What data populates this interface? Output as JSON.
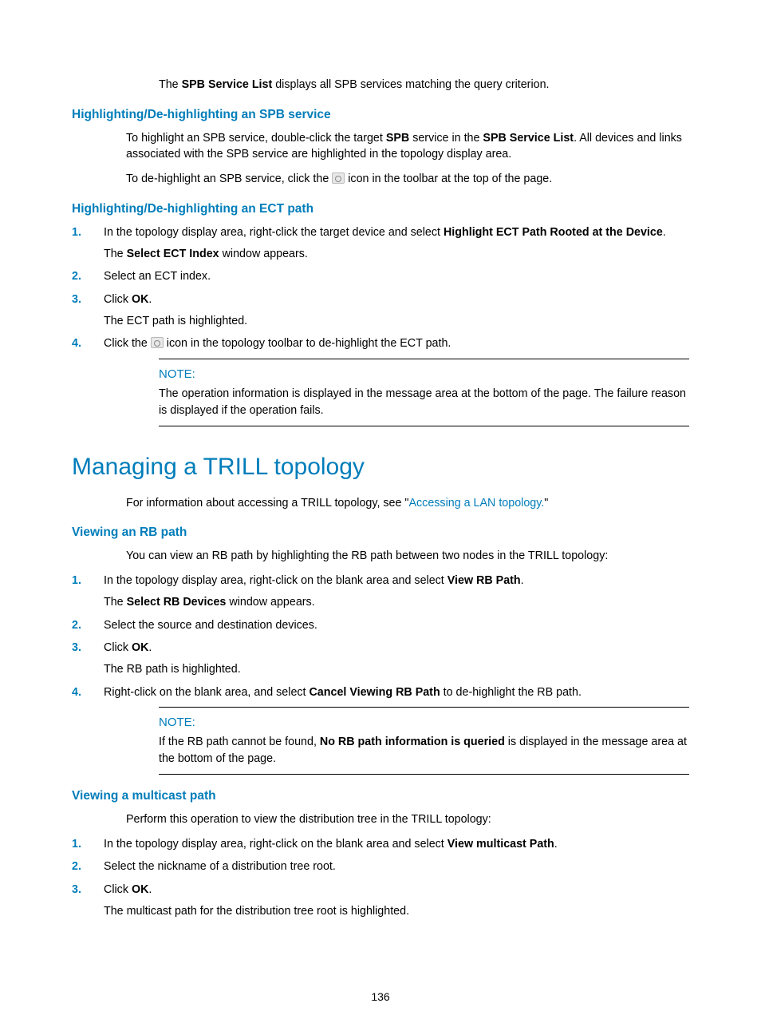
{
  "colors": {
    "accent": "#007dba",
    "text": "#000000",
    "background": "#ffffff",
    "icon_bg": "#e8e8e8",
    "icon_border": "#b8b8b8"
  },
  "intro": {
    "p1_a": "The ",
    "p1_b": "SPB Service List",
    "p1_c": " displays all SPB services matching the query criterion."
  },
  "s1": {
    "heading": "Highlighting/De-highlighting an SPB service",
    "p1_a": "To highlight an SPB service, double-click the target ",
    "p1_b": "SPB",
    "p1_c": " service in the ",
    "p1_d": "SPB Service List",
    "p1_e": ". All devices and links associated with the SPB service are highlighted in the topology display area.",
    "p2_a": "To de-highlight an SPB service, click the ",
    "p2_b": " icon in the toolbar at the top of the page."
  },
  "s2": {
    "heading": "Highlighting/De-highlighting an ECT path",
    "steps": {
      "n1": "1.",
      "t1a": "In the topology display area, right-click the target device and select ",
      "t1b": "Highlight ECT Path Rooted at the Device",
      "t1c": ".",
      "t1d_a": "The ",
      "t1d_b": "Select ECT Index",
      "t1d_c": " window appears.",
      "n2": "2.",
      "t2": "Select an ECT index.",
      "n3": "3.",
      "t3a": "Click ",
      "t3b": "OK",
      "t3c": ".",
      "t3d": "The ECT path is highlighted.",
      "n4": "4.",
      "t4a": "Click the ",
      "t4b": " icon in the topology toolbar to de-highlight the ECT path."
    },
    "note_label": "NOTE:",
    "note_text": "The operation information is displayed in the message area at the bottom of the page. The failure reason is displayed if the operation fails."
  },
  "h2": "Managing a TRILL topology",
  "h2_intro_a": "For information about accessing a TRILL topology, see \"",
  "h2_intro_link": "Accessing a LAN topology.",
  "h2_intro_b": "\"",
  "s3": {
    "heading": "Viewing an RB path",
    "intro": "You can view an RB path by highlighting the RB path between two nodes in the TRILL topology:",
    "steps": {
      "n1": "1.",
      "t1a": "In the topology display area, right-click on the blank area and select ",
      "t1b": "View RB Path",
      "t1c": ".",
      "t1d_a": "The ",
      "t1d_b": "Select RB Devices",
      "t1d_c": " window appears.",
      "n2": "2.",
      "t2": "Select the source and destination devices.",
      "n3": "3.",
      "t3a": "Click ",
      "t3b": "OK",
      "t3c": ".",
      "t3d": "The RB path is highlighted.",
      "n4": "4.",
      "t4a": "Right-click on the blank area, and select ",
      "t4b": "Cancel Viewing RB Path",
      "t4c": " to de-highlight the RB path."
    },
    "note_label": "NOTE:",
    "note_a": "If the RB path cannot be found, ",
    "note_b": "No RB path information is queried",
    "note_c": " is displayed in the message area at the bottom of the page."
  },
  "s4": {
    "heading": "Viewing a multicast path",
    "intro": "Perform this operation to view the distribution tree in the TRILL topology:",
    "steps": {
      "n1": "1.",
      "t1a": "In the topology display area, right-click on the blank area and select ",
      "t1b": "View multicast Path",
      "t1c": ".",
      "n2": "2.",
      "t2": "Select the nickname of a distribution tree root.",
      "n3": "3.",
      "t3a": "Click ",
      "t3b": "OK",
      "t3c": ".",
      "t3d": "The multicast path for the distribution tree root is highlighted."
    }
  },
  "page_number": "136"
}
